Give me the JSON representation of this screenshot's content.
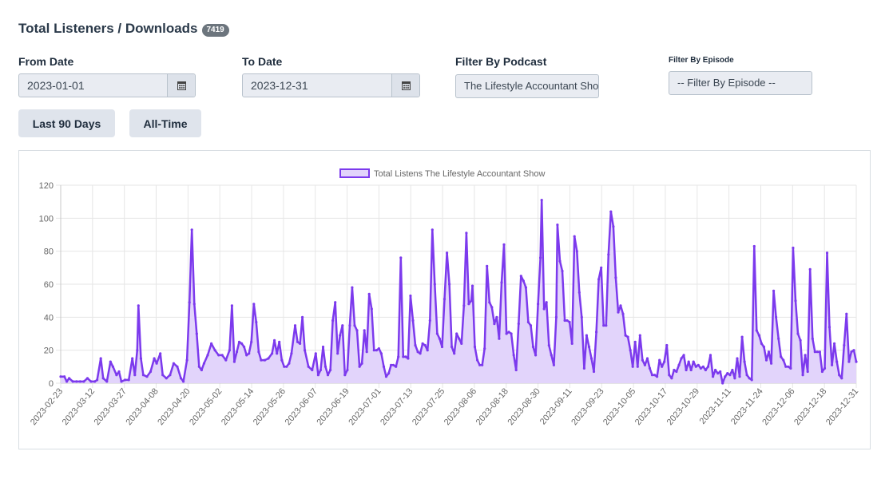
{
  "header": {
    "title": "Total Listeners / Downloads",
    "badge": "7419"
  },
  "filters": {
    "from_label": "From Date",
    "from_value": "2023-01-01",
    "to_label": "To Date",
    "to_value": "2023-12-31",
    "podcast_label": "Filter By Podcast",
    "podcast_value": "The Lifestyle Accountant Show",
    "episode_label": "Filter By Episode",
    "episode_value": "-- Filter By Episode --",
    "calendar_icon": "calendar-icon"
  },
  "buttons": {
    "last90": "Last 90 Days",
    "alltime": "All-Time"
  },
  "colors": {
    "line": "#7c3aed",
    "fill": "#e2d4fb",
    "grid": "#e6e6e6",
    "button_bg": "#dfe4ec"
  },
  "chart_data": {
    "type": "area",
    "legend": {
      "label": "Total Listens The Lifestyle Accountant Show",
      "position": "top"
    },
    "ylim": [
      0,
      120
    ],
    "yticks": [
      0,
      20,
      40,
      60,
      80,
      100,
      120
    ],
    "xtick_labels": [
      "2023-02-23",
      "2023-03-12",
      "2023-03-27",
      "2023-04-08",
      "2023-04-20",
      "2023-05-02",
      "2023-05-14",
      "2023-05-26",
      "2023-06-07",
      "2023-06-19",
      "2023-07-01",
      "2023-07-13",
      "2023-07-25",
      "2023-08-06",
      "2023-08-18",
      "2023-08-30",
      "2023-09-11",
      "2023-09-23",
      "2023-10-05",
      "2023-10-17",
      "2023-10-29",
      "2023-11-11",
      "2023-11-24",
      "2023-12-06",
      "2023-12-18",
      "2023-12-31"
    ],
    "series": [
      {
        "name": "Total Listens The Lifestyle Accountant Show",
        "points": [
          [
            0,
            4
          ],
          [
            3,
            4
          ],
          [
            5,
            1
          ],
          [
            7,
            3
          ],
          [
            10,
            1
          ],
          [
            13,
            1
          ],
          [
            16,
            1
          ],
          [
            19,
            1
          ],
          [
            22,
            3
          ],
          [
            25,
            1
          ],
          [
            28,
            1
          ],
          [
            30,
            2
          ],
          [
            33,
            15
          ],
          [
            35,
            3
          ],
          [
            38,
            1
          ],
          [
            41,
            13
          ],
          [
            43,
            10
          ],
          [
            46,
            5
          ],
          [
            48,
            7
          ],
          [
            50,
            1
          ],
          [
            53,
            2
          ],
          [
            56,
            2
          ],
          [
            59,
            15
          ],
          [
            61,
            5
          ],
          [
            63,
            20
          ],
          [
            64,
            47
          ],
          [
            66,
            15
          ],
          [
            68,
            5
          ],
          [
            71,
            4
          ],
          [
            74,
            7
          ],
          [
            77,
            15
          ],
          [
            79,
            12
          ],
          [
            82,
            18
          ],
          [
            84,
            5
          ],
          [
            87,
            3
          ],
          [
            90,
            5
          ],
          [
            93,
            12
          ],
          [
            96,
            10
          ],
          [
            99,
            3
          ],
          [
            101,
            1
          ],
          [
            104,
            14
          ],
          [
            106,
            49
          ],
          [
            108,
            93
          ],
          [
            110,
            48
          ],
          [
            112,
            30
          ],
          [
            114,
            10
          ],
          [
            116,
            8
          ],
          [
            118,
            12
          ],
          [
            121,
            17
          ],
          [
            124,
            24
          ],
          [
            127,
            20
          ],
          [
            130,
            17
          ],
          [
            133,
            17
          ],
          [
            136,
            14
          ],
          [
            139,
            20
          ],
          [
            141,
            47
          ],
          [
            143,
            13
          ],
          [
            145,
            19
          ],
          [
            147,
            25
          ],
          [
            149,
            24
          ],
          [
            151,
            22
          ],
          [
            153,
            17
          ],
          [
            155,
            18
          ],
          [
            157,
            25
          ],
          [
            159,
            48
          ],
          [
            161,
            37
          ],
          [
            163,
            19
          ],
          [
            165,
            14
          ],
          [
            168,
            14
          ],
          [
            171,
            15
          ],
          [
            174,
            18
          ],
          [
            176,
            26
          ],
          [
            178,
            18
          ],
          [
            180,
            25
          ],
          [
            182,
            14
          ],
          [
            184,
            10
          ],
          [
            186,
            10
          ],
          [
            188,
            12
          ],
          [
            190,
            18
          ],
          [
            193,
            35
          ],
          [
            195,
            25
          ],
          [
            197,
            24
          ],
          [
            199,
            40
          ],
          [
            201,
            20
          ],
          [
            204,
            10
          ],
          [
            207,
            8
          ],
          [
            210,
            18
          ],
          [
            212,
            5
          ],
          [
            214,
            8
          ],
          [
            216,
            22
          ],
          [
            218,
            10
          ],
          [
            220,
            5
          ],
          [
            222,
            8
          ],
          [
            224,
            38
          ],
          [
            226,
            49
          ],
          [
            228,
            18
          ],
          [
            230,
            29
          ],
          [
            232,
            35
          ],
          [
            234,
            5
          ],
          [
            236,
            8
          ],
          [
            238,
            35
          ],
          [
            240,
            58
          ],
          [
            242,
            35
          ],
          [
            244,
            32
          ],
          [
            246,
            10
          ],
          [
            248,
            12
          ],
          [
            250,
            32
          ],
          [
            252,
            19
          ],
          [
            254,
            54
          ],
          [
            256,
            45
          ],
          [
            258,
            20
          ],
          [
            260,
            20
          ],
          [
            262,
            21
          ],
          [
            264,
            18
          ],
          [
            266,
            10
          ],
          [
            268,
            4
          ],
          [
            270,
            6
          ],
          [
            272,
            11
          ],
          [
            274,
            11
          ],
          [
            276,
            10
          ],
          [
            278,
            16
          ],
          [
            280,
            76
          ],
          [
            282,
            16
          ],
          [
            284,
            16
          ],
          [
            286,
            15
          ],
          [
            288,
            53
          ],
          [
            290,
            38
          ],
          [
            292,
            23
          ],
          [
            294,
            19
          ],
          [
            296,
            18
          ],
          [
            298,
            24
          ],
          [
            300,
            23
          ],
          [
            302,
            20
          ],
          [
            304,
            38
          ],
          [
            306,
            93
          ],
          [
            308,
            60
          ],
          [
            310,
            30
          ],
          [
            312,
            27
          ],
          [
            314,
            22
          ],
          [
            316,
            51
          ],
          [
            318,
            79
          ],
          [
            320,
            60
          ],
          [
            322,
            22
          ],
          [
            324,
            18
          ],
          [
            326,
            30
          ],
          [
            328,
            27
          ],
          [
            330,
            24
          ],
          [
            332,
            47
          ],
          [
            334,
            91
          ],
          [
            336,
            48
          ],
          [
            338,
            50
          ],
          [
            339,
            59
          ],
          [
            341,
            22
          ],
          [
            343,
            14
          ],
          [
            345,
            11
          ],
          [
            347,
            11
          ],
          [
            349,
            21
          ],
          [
            351,
            71
          ],
          [
            353,
            49
          ],
          [
            355,
            46
          ],
          [
            357,
            36
          ],
          [
            359,
            40
          ],
          [
            361,
            27
          ],
          [
            363,
            61
          ],
          [
            365,
            84
          ],
          [
            367,
            30
          ],
          [
            369,
            31
          ],
          [
            371,
            30
          ],
          [
            373,
            17
          ],
          [
            375,
            8
          ],
          [
            377,
            36
          ],
          [
            379,
            65
          ],
          [
            381,
            62
          ],
          [
            383,
            58
          ],
          [
            385,
            37
          ],
          [
            387,
            35
          ],
          [
            389,
            22
          ],
          [
            391,
            17
          ],
          [
            393,
            48
          ],
          [
            395,
            76
          ],
          [
            396,
            111
          ],
          [
            398,
            45
          ],
          [
            400,
            49
          ],
          [
            402,
            23
          ],
          [
            404,
            17
          ],
          [
            406,
            11
          ],
          [
            408,
            40
          ],
          [
            409,
            96
          ],
          [
            411,
            74
          ],
          [
            413,
            68
          ],
          [
            415,
            38
          ],
          [
            417,
            38
          ],
          [
            419,
            37
          ],
          [
            421,
            24
          ],
          [
            423,
            89
          ],
          [
            425,
            80
          ],
          [
            427,
            55
          ],
          [
            429,
            40
          ],
          [
            431,
            9
          ],
          [
            433,
            29
          ],
          [
            435,
            22
          ],
          [
            437,
            15
          ],
          [
            439,
            7
          ],
          [
            441,
            31
          ],
          [
            443,
            63
          ],
          [
            445,
            70
          ],
          [
            447,
            35
          ],
          [
            449,
            35
          ],
          [
            451,
            78
          ],
          [
            453,
            104
          ],
          [
            455,
            95
          ],
          [
            457,
            64
          ],
          [
            459,
            43
          ],
          [
            461,
            47
          ],
          [
            463,
            42
          ],
          [
            465,
            29
          ],
          [
            467,
            28
          ],
          [
            469,
            20
          ],
          [
            471,
            10
          ],
          [
            473,
            25
          ],
          [
            475,
            10
          ],
          [
            477,
            29
          ],
          [
            479,
            14
          ],
          [
            481,
            11
          ],
          [
            483,
            15
          ],
          [
            485,
            9
          ],
          [
            487,
            5
          ],
          [
            489,
            5
          ],
          [
            491,
            4
          ],
          [
            493,
            14
          ],
          [
            495,
            10
          ],
          [
            497,
            13
          ],
          [
            499,
            23
          ],
          [
            501,
            5
          ],
          [
            503,
            3
          ],
          [
            505,
            8
          ],
          [
            507,
            7
          ],
          [
            509,
            11
          ],
          [
            511,
            15
          ],
          [
            513,
            17
          ],
          [
            515,
            8
          ],
          [
            517,
            13
          ],
          [
            519,
            8
          ],
          [
            521,
            13
          ],
          [
            523,
            10
          ],
          [
            525,
            11
          ],
          [
            527,
            9
          ],
          [
            529,
            10
          ],
          [
            531,
            8
          ],
          [
            533,
            10
          ],
          [
            535,
            17
          ],
          [
            537,
            4
          ],
          [
            539,
            8
          ],
          [
            541,
            6
          ],
          [
            543,
            7
          ],
          [
            545,
            0
          ],
          [
            547,
            4
          ],
          [
            549,
            6
          ],
          [
            551,
            5
          ],
          [
            553,
            8
          ],
          [
            555,
            3
          ],
          [
            557,
            15
          ],
          [
            559,
            4
          ],
          [
            561,
            28
          ],
          [
            563,
            13
          ],
          [
            565,
            5
          ],
          [
            567,
            3
          ],
          [
            569,
            2
          ],
          [
            571,
            83
          ],
          [
            573,
            32
          ],
          [
            575,
            29
          ],
          [
            577,
            24
          ],
          [
            579,
            22
          ],
          [
            581,
            14
          ],
          [
            583,
            19
          ],
          [
            585,
            12
          ],
          [
            587,
            56
          ],
          [
            589,
            40
          ],
          [
            591,
            27
          ],
          [
            593,
            16
          ],
          [
            595,
            14
          ],
          [
            597,
            10
          ],
          [
            599,
            10
          ],
          [
            601,
            9
          ],
          [
            603,
            82
          ],
          [
            605,
            50
          ],
          [
            607,
            30
          ],
          [
            609,
            26
          ],
          [
            611,
            5
          ],
          [
            613,
            17
          ],
          [
            615,
            7
          ],
          [
            617,
            69
          ],
          [
            619,
            27
          ],
          [
            621,
            19
          ],
          [
            623,
            19
          ],
          [
            625,
            19
          ],
          [
            627,
            7
          ],
          [
            629,
            9
          ],
          [
            631,
            79
          ],
          [
            633,
            34
          ],
          [
            635,
            11
          ],
          [
            637,
            24
          ],
          [
            639,
            13
          ],
          [
            641,
            5
          ],
          [
            643,
            3
          ],
          [
            645,
            23
          ],
          [
            647,
            42
          ],
          [
            649,
            13
          ],
          [
            651,
            19
          ],
          [
            653,
            20
          ],
          [
            655,
            13
          ]
        ]
      }
    ]
  }
}
